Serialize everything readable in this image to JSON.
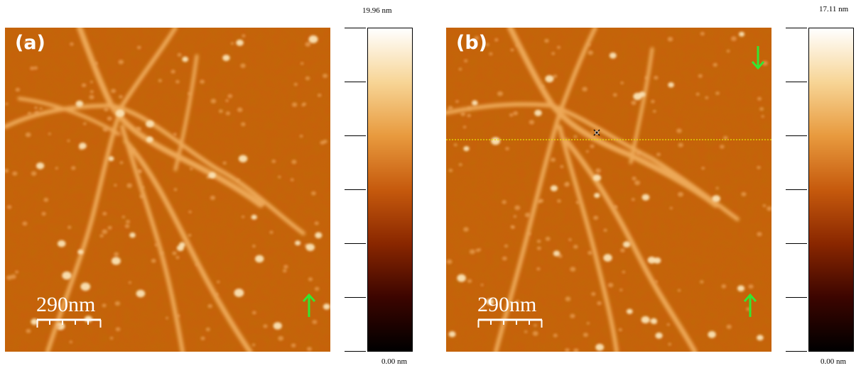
{
  "panels": [
    {
      "label": "(a)",
      "scale_label": "290nm",
      "colorbar": {
        "max_label": "19.96 nm",
        "min_label": "0.00 nm"
      },
      "arrows": [
        "up"
      ],
      "has_scan_line": false
    },
    {
      "label": "(b)",
      "scale_label": "290nm",
      "colorbar": {
        "max_label": "17.11 nm",
        "min_label": "0.00 nm"
      },
      "arrows": [
        "down",
        "up"
      ],
      "has_scan_line": true
    }
  ],
  "colors": {
    "background": "#c8600c",
    "feature": "#f4c276",
    "arrow": "#33e633",
    "scan_line": "#e8e800",
    "colormap": [
      "#000000",
      "#3c0500",
      "#8a2700",
      "#c65a0d",
      "#e89a3e",
      "#f7d596",
      "#ffffff"
    ]
  },
  "icons": {
    "arrow": "arrow-icon",
    "cursor": "crosshair-icon"
  }
}
